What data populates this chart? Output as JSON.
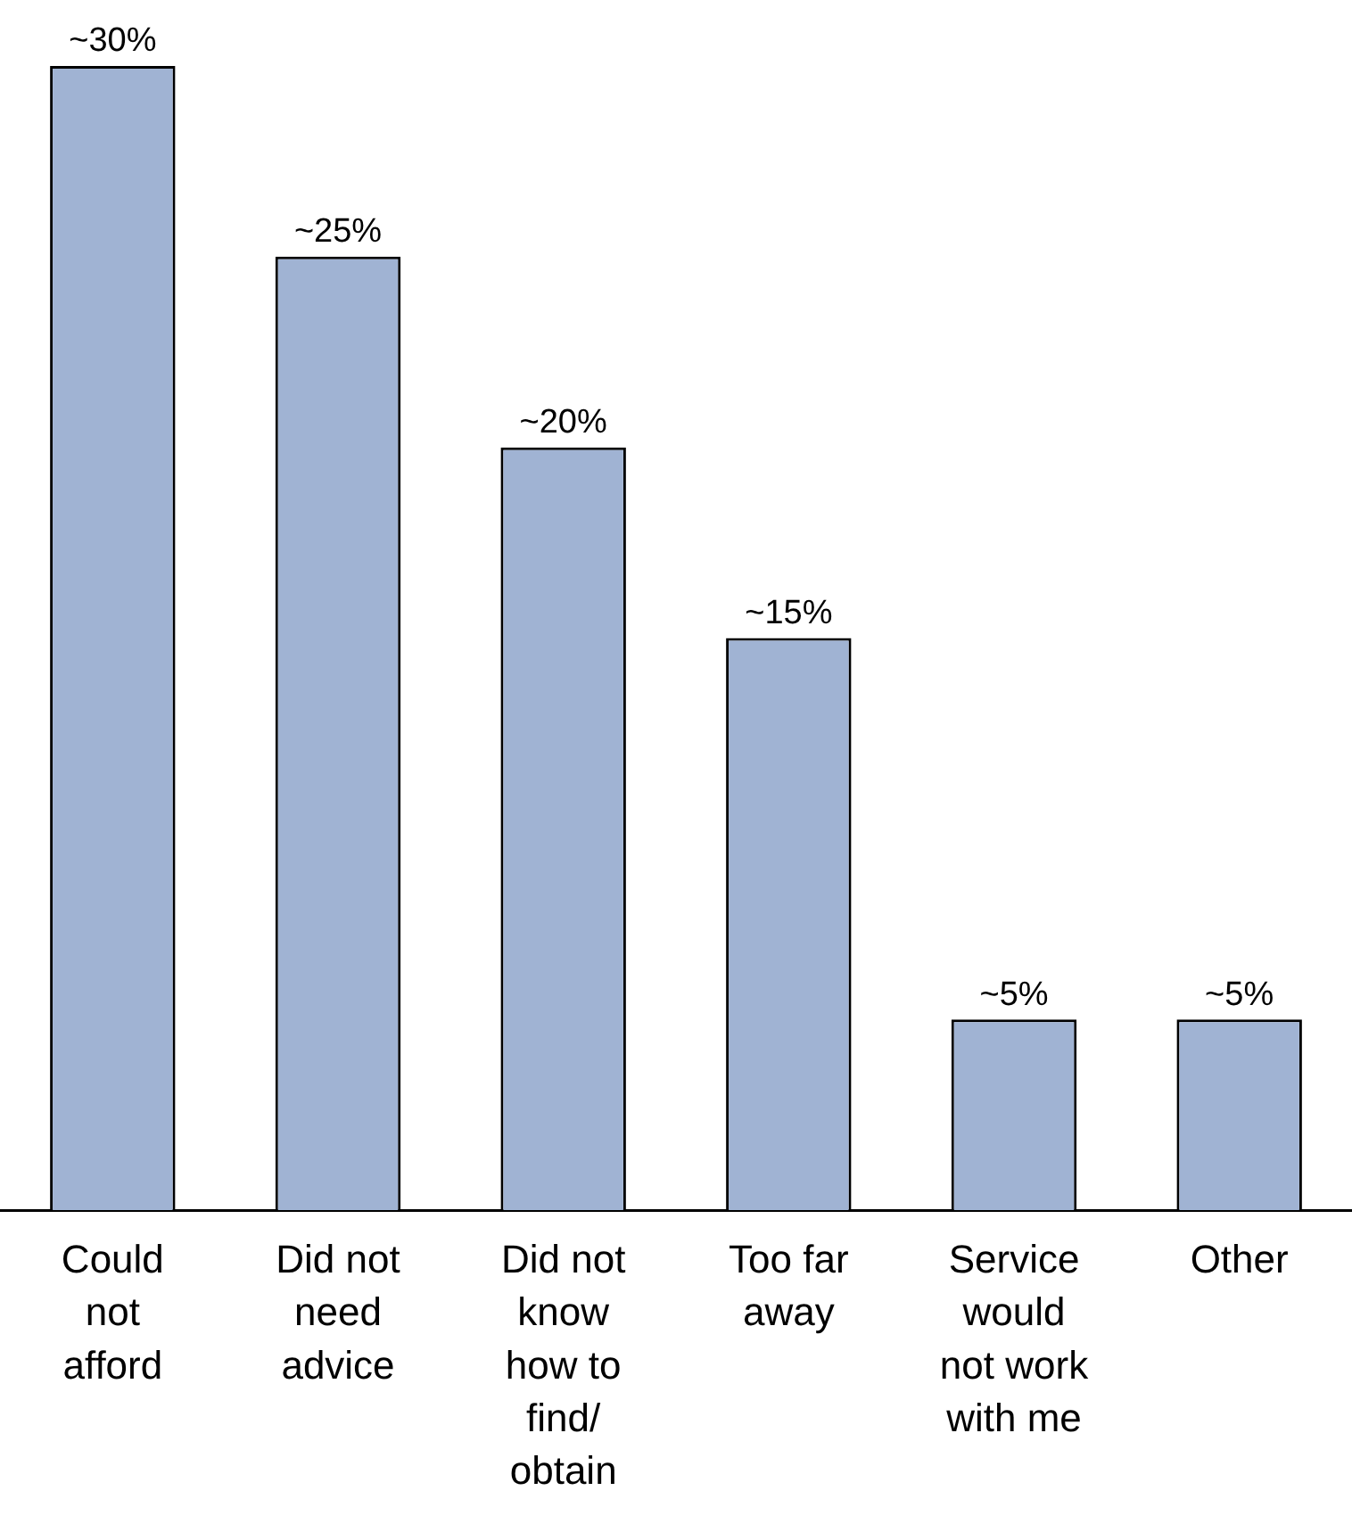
{
  "chart_data": {
    "type": "bar",
    "categories": [
      "Could not afford",
      "Did not need advice",
      "Did not know how to find/ obtain",
      "Too far away",
      "Service would not work with me",
      "Other"
    ],
    "values": [
      30,
      25,
      20,
      15,
      5,
      5
    ],
    "value_labels": [
      "~30%",
      "~25%",
      "~20%",
      "~15%",
      "~5%",
      "~5%"
    ],
    "color": "#a0b3d3",
    "grid": false,
    "legend": false
  }
}
